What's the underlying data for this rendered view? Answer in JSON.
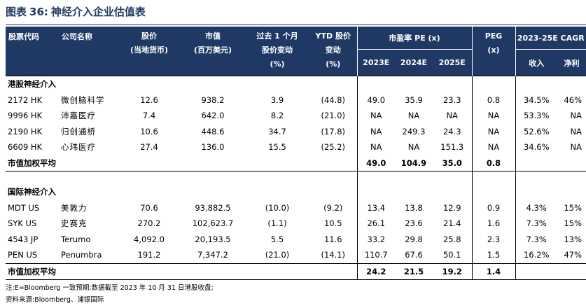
{
  "caption": {
    "prefix": "图表",
    "number": "36:",
    "title": "神经介入企业估值表"
  },
  "header": {
    "ticker": "股票代码",
    "company": "公司名称",
    "price_l1": "股价",
    "price_l2": "(当地货币)",
    "mktcap_l1": "市值",
    "mktcap_l2": "(百万美元)",
    "chg1m_l1": "过去 1 个月",
    "chg1m_l2": "股价变动",
    "chg1m_l3": "(%)",
    "ytd_l1": "YTD 股价",
    "ytd_l2": "变动",
    "ytd_l3": "(%)",
    "pe_group": "市盈率 PE (x)",
    "pe_2023": "2023E",
    "pe_2024": "2024E",
    "pe_2025": "2025E",
    "peg_l1": "PEG",
    "peg_l2": "(x)",
    "cagr_group": "2023-25E CAGR",
    "cagr_rev": "收入",
    "cagr_np": "净利"
  },
  "hk": {
    "title": "港股神经介入",
    "rows": [
      {
        "ticker": "2172 HK",
        "name": "微创脑科学",
        "price": "12.6",
        "mktcap": "938.2",
        "chg1m": "3.9",
        "ytd": "(44.8)",
        "pe23": "49.0",
        "pe24": "35.9",
        "pe25": "23.3",
        "peg": "0.8",
        "rev": "34.5%",
        "np": "46%"
      },
      {
        "ticker": "9996 HK",
        "name": "沛嘉医疗",
        "price": "7.4",
        "mktcap": "642.0",
        "chg1m": "8.2",
        "ytd": "(21.0)",
        "pe23": "NA",
        "pe24": "NA",
        "pe25": "NA",
        "peg": "NA",
        "rev": "53.3%",
        "np": "NA"
      },
      {
        "ticker": "2190 HK",
        "name": "归创通桥",
        "price": "10.6",
        "mktcap": "448.6",
        "chg1m": "34.7",
        "ytd": "(17.8)",
        "pe23": "NA",
        "pe24": "249.3",
        "pe25": "24.3",
        "peg": "NA",
        "rev": "52.6%",
        "np": "NA"
      },
      {
        "ticker": "6609 HK",
        "name": "心玮医疗",
        "price": "27.4",
        "mktcap": "136.0",
        "chg1m": "15.5",
        "ytd": "(25.2)",
        "pe23": "NA",
        "pe24": "NA",
        "pe25": "151.3",
        "peg": "NA",
        "rev": "34.6%",
        "np": "NA"
      }
    ],
    "avg": {
      "label": "市值加权平均",
      "pe23": "49.0",
      "pe24": "104.9",
      "pe25": "35.0",
      "peg": "0.8"
    }
  },
  "intl": {
    "title": "国际神经介入",
    "rows": [
      {
        "ticker": "MDT US",
        "name": "美敦力",
        "price": "70.6",
        "mktcap": "93,882.5",
        "chg1m": "(10.0)",
        "ytd": "(9.2)",
        "pe23": "13.4",
        "pe24": "13.8",
        "pe25": "12.9",
        "peg": "0.9",
        "rev": "4.3%",
        "np": "15%"
      },
      {
        "ticker": "SYK US",
        "name": "史赛克",
        "price": "270.2",
        "mktcap": "102,623.7",
        "chg1m": "(1.1)",
        "ytd": "10.5",
        "pe23": "26.1",
        "pe24": "23.6",
        "pe25": "21.4",
        "peg": "1.6",
        "rev": "7.3%",
        "np": "15%"
      },
      {
        "ticker": "4543 JP",
        "name": "Terumo",
        "price": "4,092.0",
        "mktcap": "20,193.5",
        "chg1m": "5.5",
        "ytd": "11.6",
        "pe23": "33.2",
        "pe24": "29.8",
        "pe25": "25.8",
        "peg": "2.3",
        "rev": "7.3%",
        "np": "13%"
      },
      {
        "ticker": "PEN US",
        "name": "Penumbra",
        "price": "191.2",
        "mktcap": "7,347.2",
        "chg1m": "(21.0)",
        "ytd": "(14.1)",
        "pe23": "110.7",
        "pe24": "67.6",
        "pe25": "50.1",
        "peg": "1.5",
        "rev": "16.2%",
        "np": "47%"
      }
    ],
    "avg": {
      "label": "市值加权平均",
      "pe23": "24.2",
      "pe24": "21.5",
      "pe25": "19.2",
      "peg": "1.4"
    }
  },
  "notes": {
    "note": "注:E=Bloomberg 一致预期;数据截至 2023 年 10 月 31 日港股收盘;",
    "source": "资料来源:Bloomberg、浦银国际"
  },
  "colors": {
    "header_bg": "#1f3864",
    "header_text": "#ffffff",
    "caption": "#1f3864"
  }
}
